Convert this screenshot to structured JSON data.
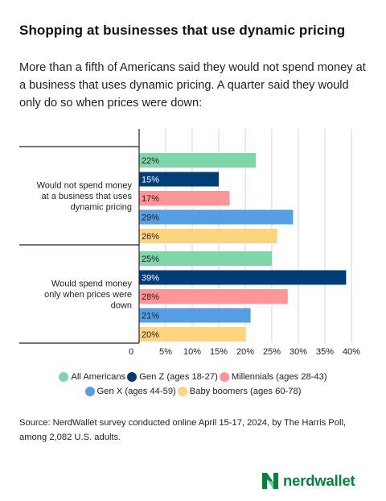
{
  "title": "Shopping at businesses that use dynamic pricing",
  "subtitle": "More than a fifth of Americans said they would not spend money at a business that uses dynamic pricing. A quarter said they would only do so when prices were down:",
  "source": "Source: NerdWallet survey conducted online April 15-17, 2024, by The Harris Poll, among 2,082 U.S. adults.",
  "brand": "nerdwallet",
  "colors": {
    "all": "#7fd6a8",
    "genz": "#003d79",
    "millennials": "#ff9595",
    "genx": "#569ee4",
    "boomers": "#ffd47e",
    "brand": "#00843d"
  },
  "chart_data": {
    "type": "bar",
    "orientation": "horizontal",
    "categories": [
      "Would not spend money at a business that uses dynamic pricing",
      "Would spend money only when prices were down"
    ],
    "category_lines": [
      [
        "Would not spend money",
        "at a business that uses",
        "dynamic pricing"
      ],
      [
        "Would spend money",
        "only when prices were",
        "down"
      ]
    ],
    "series": [
      {
        "name": "All Americans",
        "values": [
          22,
          25
        ],
        "labels": [
          "22%",
          "25%"
        ],
        "color": "#7fd6a8",
        "label_color": "#222222"
      },
      {
        "name": "Gen Z (ages 18-27)",
        "values": [
          15,
          39
        ],
        "labels": [
          "15%",
          "39%"
        ],
        "color": "#003d79",
        "label_color": "#ffffff"
      },
      {
        "name": "Millennials (ages 28-43)",
        "values": [
          17,
          28
        ],
        "labels": [
          "17%",
          "28%"
        ],
        "color": "#ff9595",
        "label_color": "#222222"
      },
      {
        "name": "Gen X (ages 44-59)",
        "values": [
          29,
          21
        ],
        "labels": [
          "29%",
          "21%"
        ],
        "color": "#569ee4",
        "label_color": "#222222"
      },
      {
        "name": "Baby boomers (ages 60-78)",
        "values": [
          26,
          20
        ],
        "labels": [
          "26%",
          "20%"
        ],
        "color": "#ffd47e",
        "label_color": "#222222"
      }
    ],
    "x_ticks": [
      "0",
      "5%",
      "10%",
      "15%",
      "20%",
      "25%",
      "30%",
      "35%",
      "40%"
    ],
    "xlim": [
      0,
      40
    ],
    "grid": true,
    "legend_position": "bottom"
  }
}
